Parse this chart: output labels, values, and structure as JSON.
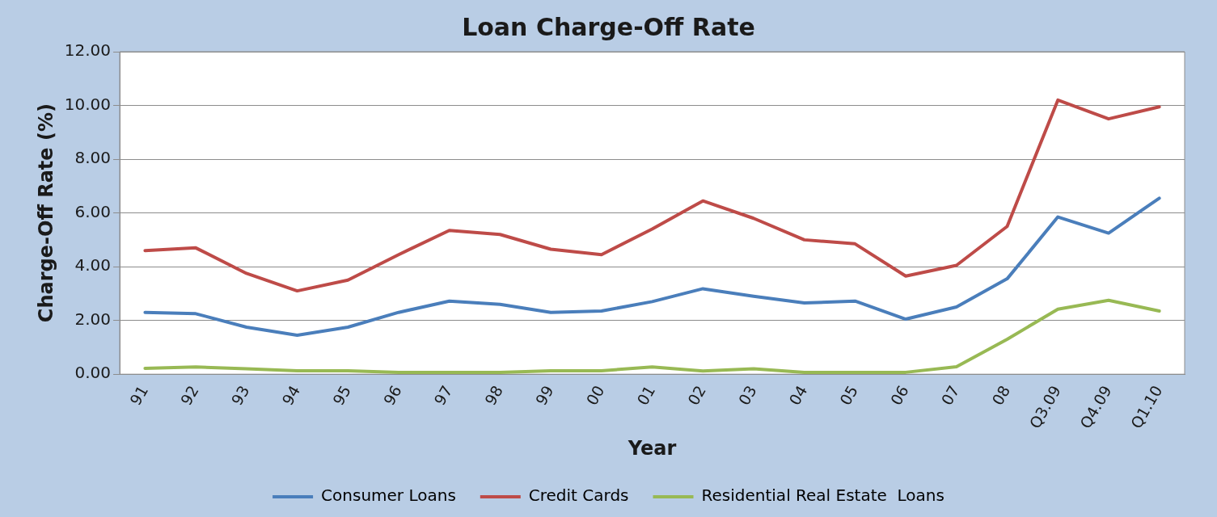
{
  "chart_data": {
    "type": "line",
    "title": "Loan Charge-Off Rate",
    "xlabel": "Year",
    "ylabel": "Charge-Off Rate (%)",
    "categories": [
      "91",
      "92",
      "93",
      "94",
      "95",
      "96",
      "97",
      "98",
      "99",
      "00",
      "01",
      "02",
      "03",
      "04",
      "05",
      "06",
      "07",
      "08",
      "Q3.09",
      "Q4.09",
      "Q1.10"
    ],
    "series": [
      {
        "name": "Consumer Loans",
        "color": "#4a7ebb",
        "values": [
          2.3,
          2.25,
          1.75,
          1.45,
          1.75,
          2.3,
          2.72,
          2.6,
          2.3,
          2.35,
          2.7,
          3.18,
          2.9,
          2.65,
          2.72,
          2.05,
          2.5,
          3.55,
          5.85,
          5.25,
          6.55
        ]
      },
      {
        "name": "Credit Cards",
        "color": "#be4b48",
        "values": [
          4.6,
          4.7,
          3.75,
          3.1,
          3.5,
          4.45,
          5.35,
          5.2,
          4.65,
          4.45,
          5.4,
          6.45,
          5.8,
          5.0,
          4.85,
          3.65,
          4.05,
          5.5,
          10.2,
          9.5,
          9.95
        ]
      },
      {
        "name": "Residential Real Estate  Loans",
        "color": "#98b954",
        "values": [
          0.22,
          0.27,
          0.2,
          0.13,
          0.13,
          0.07,
          0.07,
          0.07,
          0.13,
          0.13,
          0.27,
          0.12,
          0.2,
          0.07,
          0.07,
          0.07,
          0.28,
          1.3,
          2.42,
          2.75,
          2.35
        ]
      }
    ],
    "ylim": [
      0,
      12
    ],
    "yticks": [
      {
        "value": 0,
        "label": "0.00"
      },
      {
        "value": 2,
        "label": "2.00"
      },
      {
        "value": 4,
        "label": "4.00"
      },
      {
        "value": 6,
        "label": "6.00"
      },
      {
        "value": 8,
        "label": "8.00"
      },
      {
        "value": 10,
        "label": "10.00"
      },
      {
        "value": 12,
        "label": "12.00"
      }
    ],
    "grid": "y",
    "legend": "bottom",
    "marker": "none",
    "line_style": "solid"
  }
}
